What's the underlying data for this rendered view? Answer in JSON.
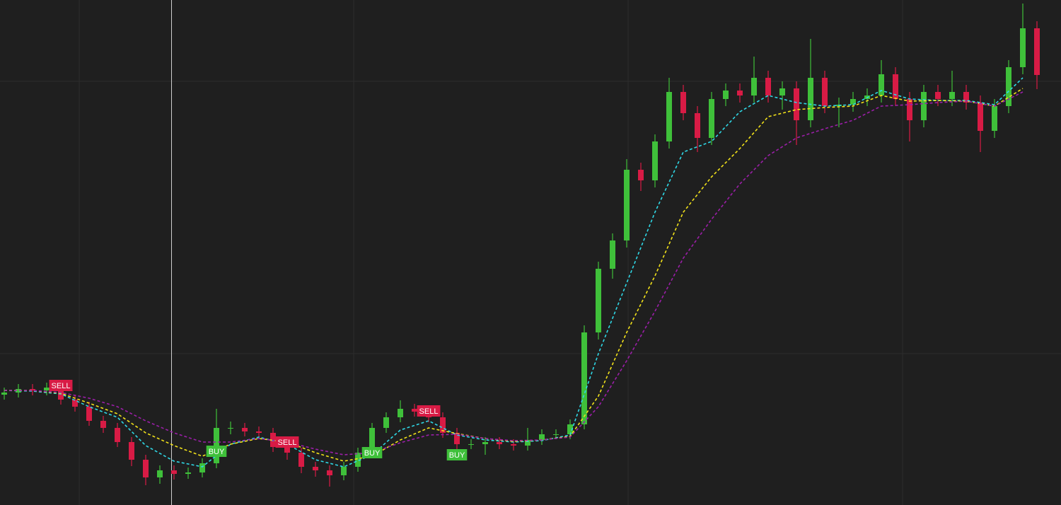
{
  "chart_data": {
    "type": "candlestick",
    "background": "#1f1f1f",
    "up_color": "#3fc03a",
    "down_color": "#d81b45",
    "xlim": [
      -0.3,
      74.7
    ],
    "ylim": [
      0,
      714
    ],
    "x": [
      0,
      1,
      2,
      3,
      4,
      5,
      6,
      7,
      8,
      9,
      10,
      11,
      12,
      13,
      14,
      15,
      16,
      17,
      18,
      19,
      20,
      21,
      22,
      23,
      24,
      25,
      26,
      27,
      28,
      29,
      30,
      31,
      32,
      33,
      34,
      35,
      36,
      37,
      38,
      39,
      40,
      41,
      42,
      43,
      44,
      45,
      46,
      47,
      48,
      49,
      50,
      51,
      52,
      53,
      54,
      55,
      56,
      57,
      58,
      59,
      60,
      61,
      62,
      63,
      64,
      65,
      66,
      67,
      68,
      69,
      70,
      71,
      72,
      73
    ],
    "open": [
      156,
      159,
      164,
      162,
      166,
      149,
      139,
      119,
      109,
      89,
      64,
      39,
      49,
      44,
      46,
      59,
      109,
      109,
      104,
      102,
      82,
      74,
      54,
      49,
      42,
      54,
      74,
      109,
      124,
      136,
      132,
      124,
      102,
      86,
      86,
      89,
      86,
      84,
      92,
      100,
      100,
      114,
      244,
      334,
      374,
      474,
      459,
      514,
      584,
      554,
      519,
      574,
      586,
      579,
      604,
      579,
      589,
      544,
      604,
      564,
      566,
      574,
      579,
      609,
      574,
      544,
      584,
      574,
      584,
      569,
      529,
      564,
      619,
      674
    ],
    "high": [
      166,
      171,
      171,
      173,
      173,
      156,
      146,
      126,
      116,
      96,
      71,
      56,
      56,
      53,
      66,
      136,
      118,
      116,
      111,
      109,
      92,
      81,
      61,
      56,
      61,
      81,
      116,
      131,
      148,
      143,
      139,
      131,
      109,
      93,
      96,
      96,
      93,
      109,
      107,
      107,
      121,
      254,
      344,
      384,
      489,
      484,
      524,
      604,
      594,
      564,
      584,
      596,
      596,
      634,
      614,
      599,
      599,
      659,
      614,
      576,
      584,
      589,
      629,
      619,
      584,
      594,
      594,
      614,
      594,
      579,
      574,
      629,
      709,
      684
    ],
    "low": [
      149,
      152,
      155,
      155,
      142,
      132,
      112,
      102,
      82,
      55,
      28,
      30,
      36,
      37,
      39,
      52,
      100,
      97,
      95,
      75,
      64,
      45,
      40,
      26,
      35,
      47,
      67,
      102,
      117,
      125,
      117,
      95,
      79,
      79,
      71,
      79,
      77,
      77,
      85,
      93,
      93,
      107,
      234,
      320,
      364,
      444,
      449,
      504,
      544,
      499,
      509,
      564,
      569,
      569,
      569,
      559,
      509,
      534,
      554,
      534,
      556,
      564,
      569,
      564,
      514,
      534,
      564,
      564,
      559,
      499,
      519,
      554,
      609,
      588
    ],
    "close": [
      159,
      164,
      162,
      166,
      149,
      139,
      119,
      109,
      89,
      64,
      39,
      49,
      44,
      46,
      59,
      109,
      109,
      104,
      102,
      82,
      74,
      54,
      49,
      42,
      54,
      74,
      109,
      124,
      136,
      132,
      124,
      102,
      86,
      86,
      89,
      86,
      84,
      92,
      100,
      100,
      114,
      244,
      334,
      374,
      474,
      459,
      514,
      584,
      554,
      519,
      574,
      586,
      579,
      604,
      579,
      589,
      544,
      604,
      564,
      566,
      574,
      579,
      609,
      574,
      544,
      584,
      574,
      584,
      569,
      529,
      564,
      619,
      674,
      608
    ],
    "line_x": [
      0,
      2,
      4,
      6,
      8,
      10,
      12,
      14,
      16,
      18,
      20,
      22,
      24,
      26,
      28,
      30,
      32,
      34,
      36,
      38,
      40,
      42,
      44,
      46,
      48,
      50,
      52,
      54,
      56,
      58,
      60,
      62,
      64,
      66,
      68,
      70,
      72
    ],
    "lines": [
      {
        "color": "#2fd8e6",
        "values": [
          162,
          161,
          157,
          139,
          124,
          84,
          62,
          54,
          86,
          96,
          86,
          64,
          54,
          71,
          106,
          119,
          99,
          92,
          89,
          91,
          99,
          214,
          314,
          414,
          499,
          514,
          556,
          579,
          569,
          564,
          566,
          586,
          574,
          572,
          572,
          566,
          604
        ]
      },
      {
        "color": "#f2e21a",
        "values": [
          162,
          162,
          158,
          144,
          129,
          102,
          84,
          69,
          86,
          94,
          89,
          74,
          62,
          69,
          92,
          109,
          101,
          94,
          90,
          92,
          97,
          154,
          244,
          324,
          414,
          464,
          504,
          549,
          559,
          562,
          564,
          579,
          571,
          572,
          571,
          564,
          589
        ]
      },
      {
        "color": "#9b1fa8",
        "values": [
          162,
          162,
          159,
          151,
          139,
          119,
          102,
          89,
          89,
          94,
          89,
          79,
          71,
          74,
          88,
          99,
          100,
          94,
          91,
          92,
          96,
          139,
          204,
          274,
          349,
          404,
          454,
          494,
          519,
          532,
          544,
          564,
          566,
          569,
          571,
          564,
          584
        ]
      }
    ],
    "signals": [
      {
        "label": "SELL",
        "index": 4,
        "price": 169
      },
      {
        "label": "BUY",
        "index": 15,
        "price": 76
      },
      {
        "label": "SELL",
        "index": 20,
        "price": 89
      },
      {
        "label": "BUY",
        "index": 26,
        "price": 74
      },
      {
        "label": "SELL",
        "index": 30,
        "price": 133
      },
      {
        "label": "BUY",
        "index": 32,
        "price": 71
      }
    ]
  }
}
